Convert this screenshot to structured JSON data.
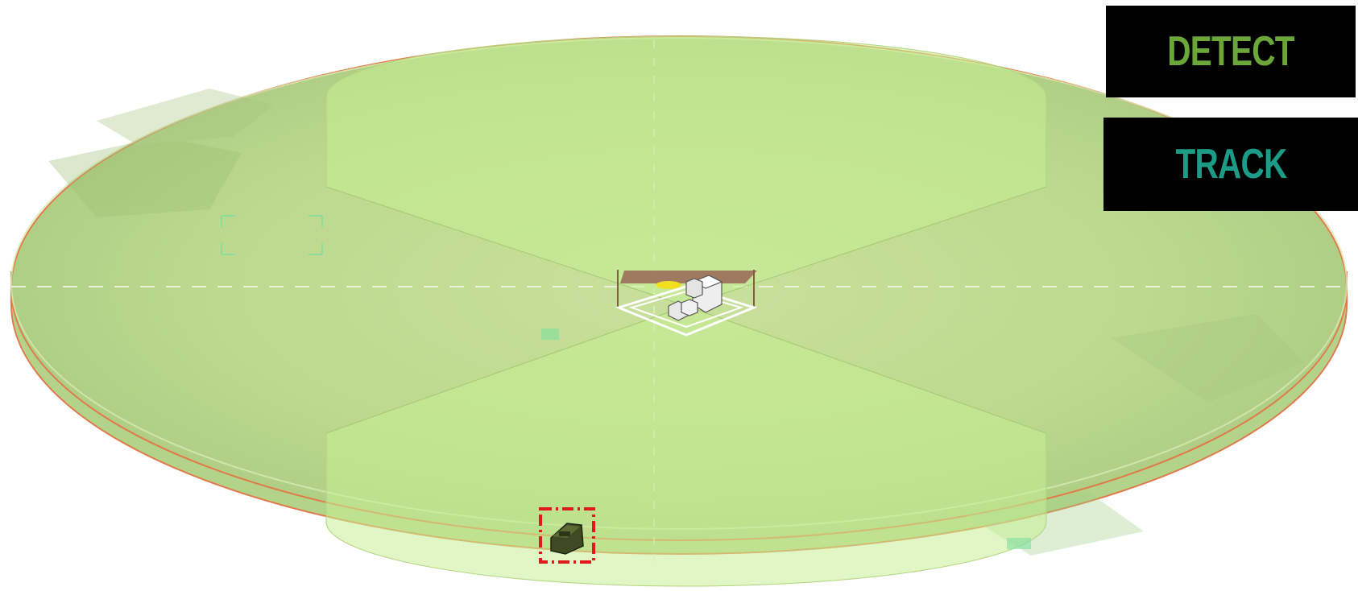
{
  "modes": [
    {
      "label": "DETECT",
      "color": "#6aa63a"
    },
    {
      "label": "TRACK",
      "color": "#1c9b86"
    }
  ],
  "colors": {
    "background": "#ffffff",
    "coverage_fill": "#bfe090",
    "coverage_outline": "#e07a4a",
    "sector_fill": "#c7ee94",
    "target_marker": "#e01a1a",
    "grid_line": "#eef6e0",
    "panel_background": "#000000"
  },
  "icons": {
    "site": "sensor-site-icon",
    "target": "armored-vehicle-icon",
    "target_box": "dashed-target-box"
  }
}
